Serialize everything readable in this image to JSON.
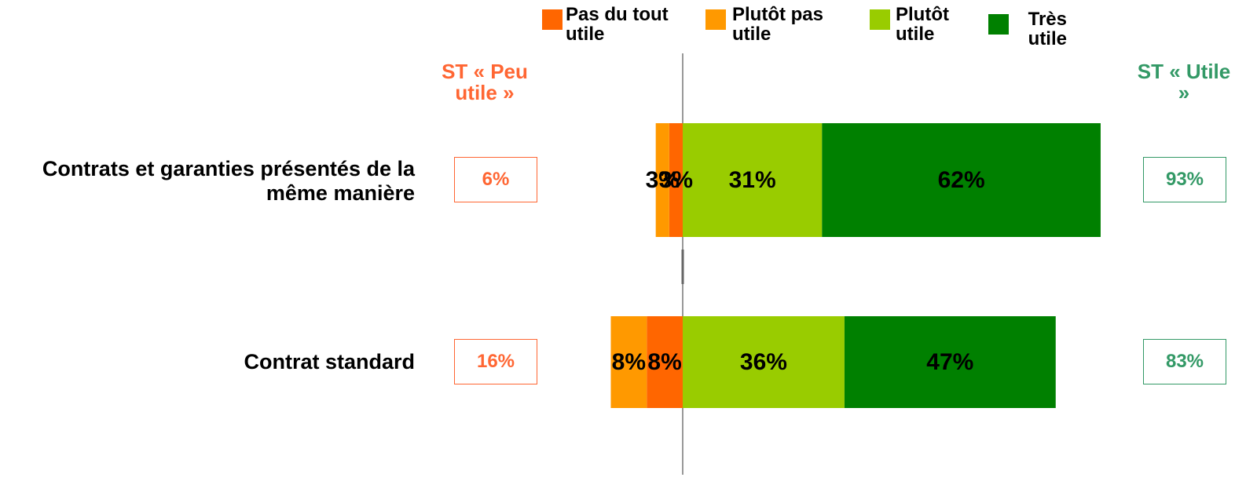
{
  "chart_data": {
    "type": "diverging_bar",
    "categories": [
      "Contrats et garanties présentés de la même manière",
      "Contrat standard"
    ],
    "series": [
      {
        "name": "Pas du tout utile",
        "color": "#ff6600",
        "side": "negative",
        "values": [
          3,
          8
        ],
        "value_labels": [
          "3%",
          "8%"
        ]
      },
      {
        "name": "Plutôt pas utile",
        "color": "#ff9900",
        "side": "negative",
        "values": [
          3,
          8
        ],
        "value_labels": [
          "3%",
          "8%"
        ]
      },
      {
        "name": "Plutôt utile",
        "color": "#99cc00",
        "side": "positive",
        "values": [
          31,
          36
        ],
        "value_labels": [
          "31%",
          "36%"
        ]
      },
      {
        "name": "Très utile",
        "color": "#008000",
        "side": "positive",
        "values": [
          62,
          47
        ],
        "value_labels": [
          "62%",
          "47%"
        ]
      }
    ],
    "totals_left": {
      "label": "ST « Peu utile »",
      "color": "#ff6633",
      "values": [
        "6%",
        "16%"
      ]
    },
    "totals_right": {
      "label": "ST « Utile »",
      "color": "#339966",
      "values": [
        "93%",
        "83%"
      ]
    }
  }
}
